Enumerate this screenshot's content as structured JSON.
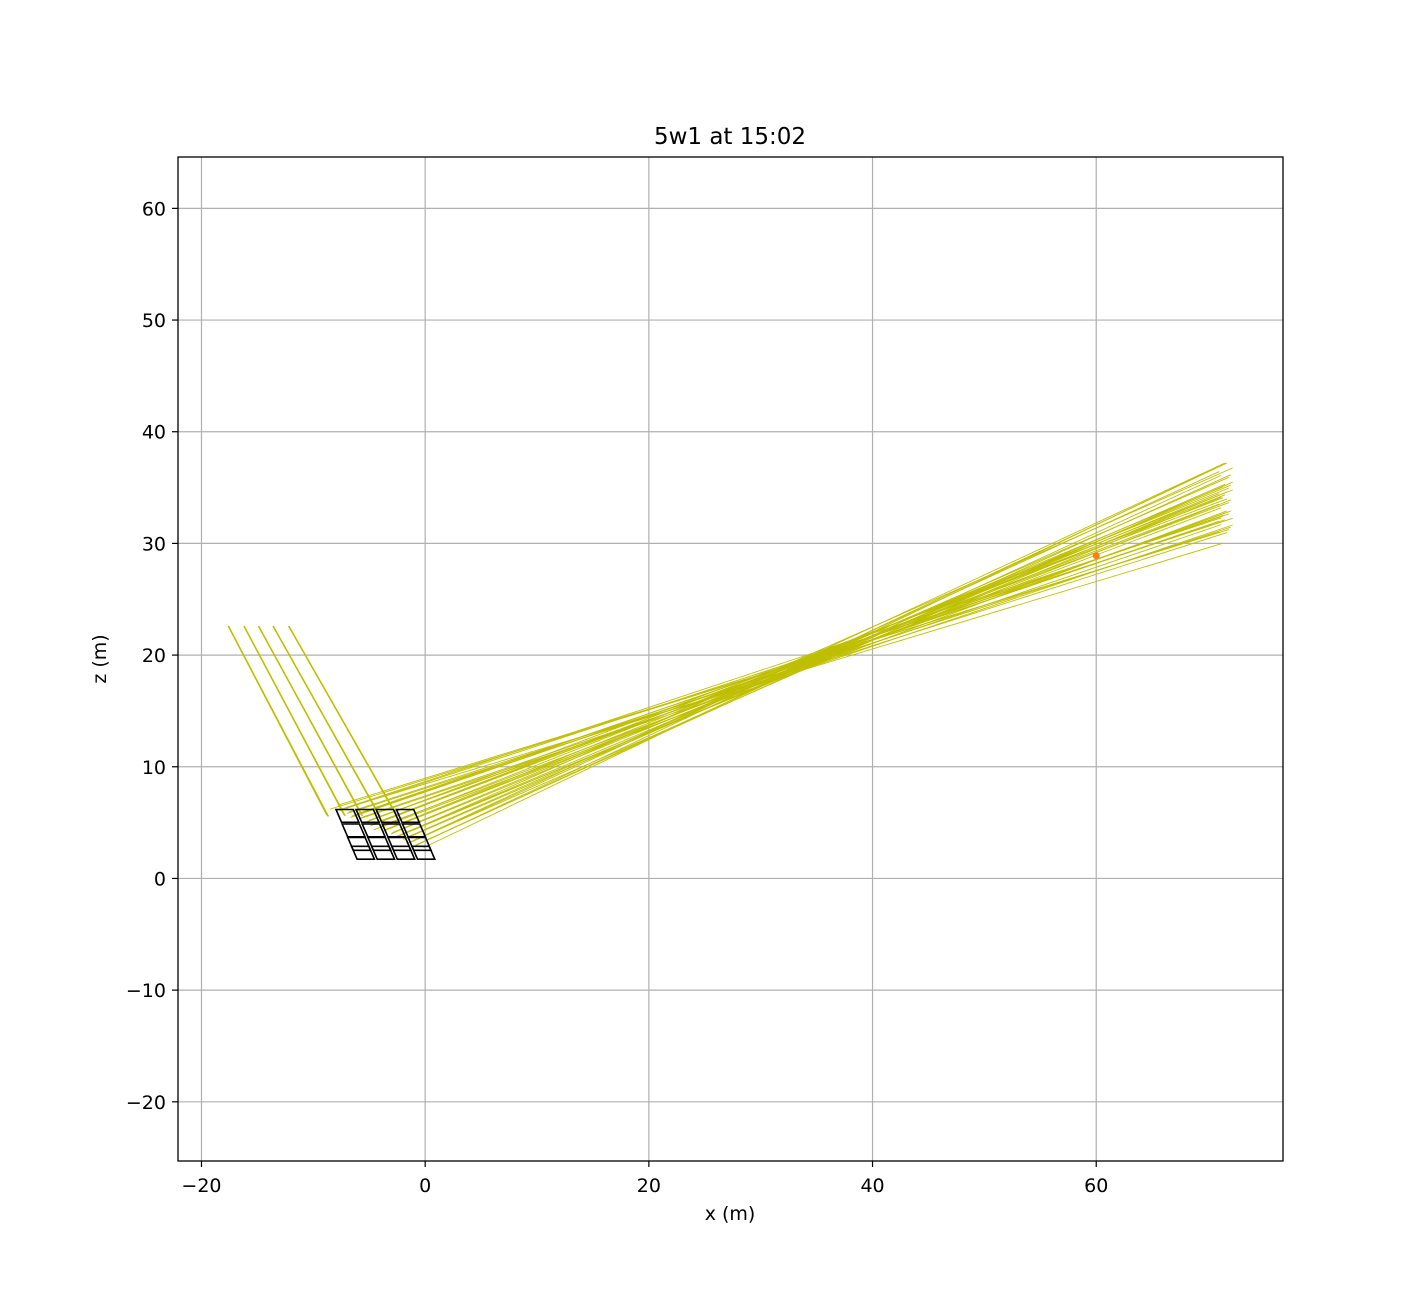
{
  "chart_data": {
    "type": "line",
    "title": "5w1 at 15:02",
    "xlabel": "x (m)",
    "ylabel": "z (m)",
    "xlim": [
      -22.1,
      76.7
    ],
    "ylim": [
      -25.3,
      64.6
    ],
    "grid": true,
    "x_ticks": [
      -20,
      0,
      20,
      40,
      60
    ],
    "y_ticks": [
      -20,
      -10,
      0,
      10,
      20,
      30,
      40,
      50,
      60
    ],
    "x_tick_labels": [
      "−20",
      "0",
      "20",
      "40",
      "60"
    ],
    "y_tick_labels": [
      "−20",
      "−10",
      "0",
      "10",
      "20",
      "30",
      "40",
      "50",
      "60"
    ],
    "ray_color": "#bfbf00",
    "heliostat_color": "#000000",
    "target_color": "#ff7f0e",
    "target": {
      "x": 60.0,
      "z": 28.9
    },
    "incoming_ray_starts_x": [
      -17.6,
      -16.2,
      -14.9,
      -13.6,
      -12.2
    ],
    "incoming_ray_start_z": 22.6,
    "mirror_columns_x": [
      -7.2,
      -5.4,
      -3.6,
      -1.8
    ],
    "mirror_rows_z": [
      5.6,
      4.3,
      3.1,
      2.3
    ],
    "reflected_ray_end_x_range": [
      71.0,
      72.2
    ],
    "reflected_ray_end_z_range": [
      29.6,
      37.2
    ],
    "ray_crossing_point": {
      "x": 35.0,
      "z": 19.7
    }
  }
}
